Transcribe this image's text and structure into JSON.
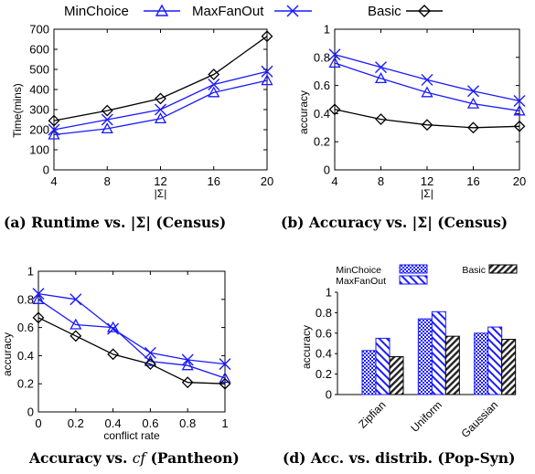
{
  "legend": {
    "minchoice": "MinChoice",
    "maxfanout": "MaxFanOut",
    "basic": "Basic"
  },
  "captions": {
    "a": "(a)  Runtime vs. |Σ| (Census)",
    "b": "(b)  Accuracy vs. |Σ| (Census)",
    "c_pre": "Accuracy vs. ",
    "c_var": "cf",
    "c_post": " (Pantheon)",
    "d": "(d) Acc. vs. distrib. (Pop-Syn)"
  },
  "colors": {
    "minchoice": "#1a1aff",
    "maxfanout": "#1a1aff",
    "basic": "#000000"
  },
  "chart_data": [
    {
      "id": "a",
      "type": "line",
      "xlabel": "|Σ|",
      "ylabel": "Time(mins)",
      "x": [
        4,
        8,
        12,
        16,
        20
      ],
      "xlim": [
        4,
        20
      ],
      "ylim": [
        0,
        700
      ],
      "yticks": [
        0,
        100,
        200,
        300,
        400,
        500,
        600,
        700
      ],
      "series": [
        {
          "name": "MinChoice",
          "values": [
            175,
            205,
            255,
            385,
            445
          ]
        },
        {
          "name": "MaxFanOut",
          "values": [
            200,
            250,
            300,
            425,
            490
          ]
        },
        {
          "name": "Basic",
          "values": [
            245,
            295,
            355,
            475,
            665
          ]
        }
      ]
    },
    {
      "id": "b",
      "type": "line",
      "xlabel": "|Σ|",
      "ylabel": "accuracy",
      "x": [
        4,
        8,
        12,
        16,
        20
      ],
      "xlim": [
        4,
        20
      ],
      "ylim": [
        0,
        1
      ],
      "yticks": [
        0,
        0.2,
        0.4,
        0.6,
        0.8,
        1
      ],
      "series": [
        {
          "name": "MinChoice",
          "values": [
            0.76,
            0.65,
            0.55,
            0.47,
            0.42
          ]
        },
        {
          "name": "MaxFanOut",
          "values": [
            0.82,
            0.73,
            0.64,
            0.56,
            0.49
          ]
        },
        {
          "name": "Basic",
          "values": [
            0.43,
            0.36,
            0.32,
            0.3,
            0.31
          ]
        }
      ]
    },
    {
      "id": "c",
      "type": "line",
      "xlabel": "conflict rate",
      "ylabel": "accuracy",
      "x": [
        0,
        0.2,
        0.4,
        0.6,
        0.8,
        1
      ],
      "xlim": [
        0,
        1
      ],
      "ylim": [
        0,
        1
      ],
      "yticks": [
        0,
        0.2,
        0.4,
        0.6,
        0.8,
        1
      ],
      "series": [
        {
          "name": "MinChoice",
          "values": [
            0.8,
            0.62,
            0.6,
            0.36,
            0.33,
            0.24
          ]
        },
        {
          "name": "MaxFanOut",
          "values": [
            0.84,
            0.8,
            0.59,
            0.42,
            0.37,
            0.34
          ]
        },
        {
          "name": "Basic",
          "values": [
            0.67,
            0.54,
            0.41,
            0.34,
            0.21,
            0.2
          ]
        }
      ]
    },
    {
      "id": "d",
      "type": "bar",
      "xlabel": "",
      "ylabel": "accuracy",
      "categories": [
        "Zipfian",
        "Uniform",
        "Gaussian"
      ],
      "ylim": [
        0,
        1
      ],
      "yticks": [
        0,
        0.2,
        0.4,
        0.6,
        0.8,
        1
      ],
      "series": [
        {
          "name": "MinChoice",
          "values": [
            0.43,
            0.74,
            0.6
          ]
        },
        {
          "name": "MaxFanOut",
          "values": [
            0.55,
            0.81,
            0.66
          ]
        },
        {
          "name": "Basic",
          "values": [
            0.37,
            0.57,
            0.54
          ]
        }
      ]
    }
  ]
}
